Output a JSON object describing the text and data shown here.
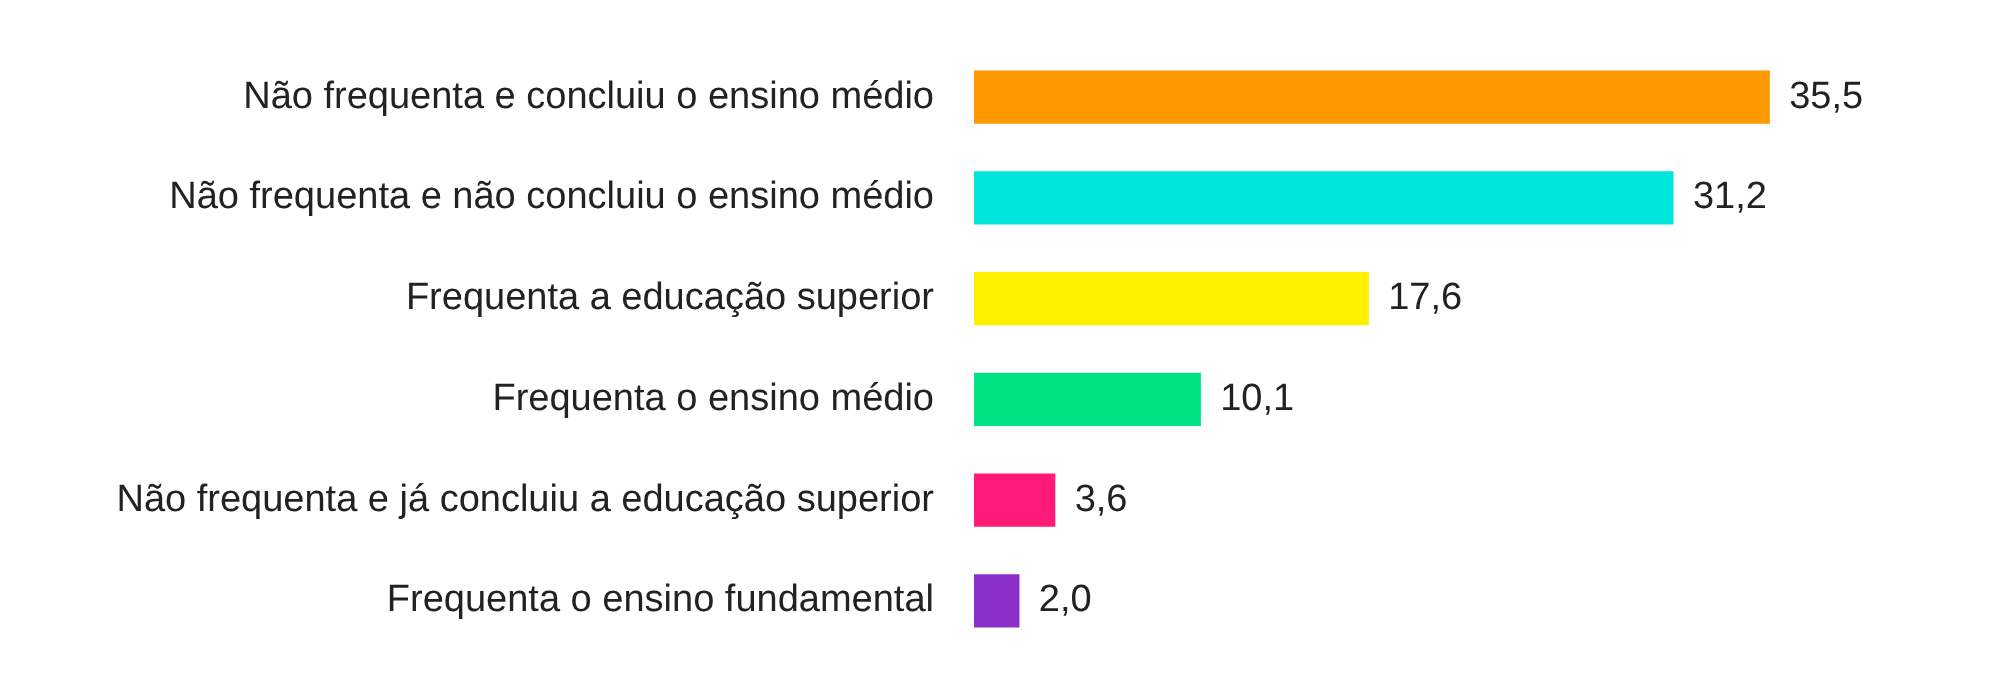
{
  "chart_data": {
    "type": "bar",
    "orientation": "horizontal",
    "categories": [
      "Não frequenta e concluiu o ensino médio",
      "Não frequenta e não concluiu o ensino médio",
      "Frequenta a educação superior",
      "Frequenta o ensino médio",
      "Não frequenta e já concluiu a educação superior",
      "Frequenta o ensino fundamental"
    ],
    "values": [
      35.5,
      31.2,
      17.6,
      10.1,
      3.6,
      2.0
    ],
    "value_labels": [
      "35,5",
      "31,2",
      "17,6",
      "10,1",
      "3,6",
      "2,0"
    ],
    "colors": [
      "#ff9900",
      "#00e5dc",
      "#fff200",
      "#00e384",
      "#ff1a7a",
      "#8a2fc9"
    ]
  }
}
